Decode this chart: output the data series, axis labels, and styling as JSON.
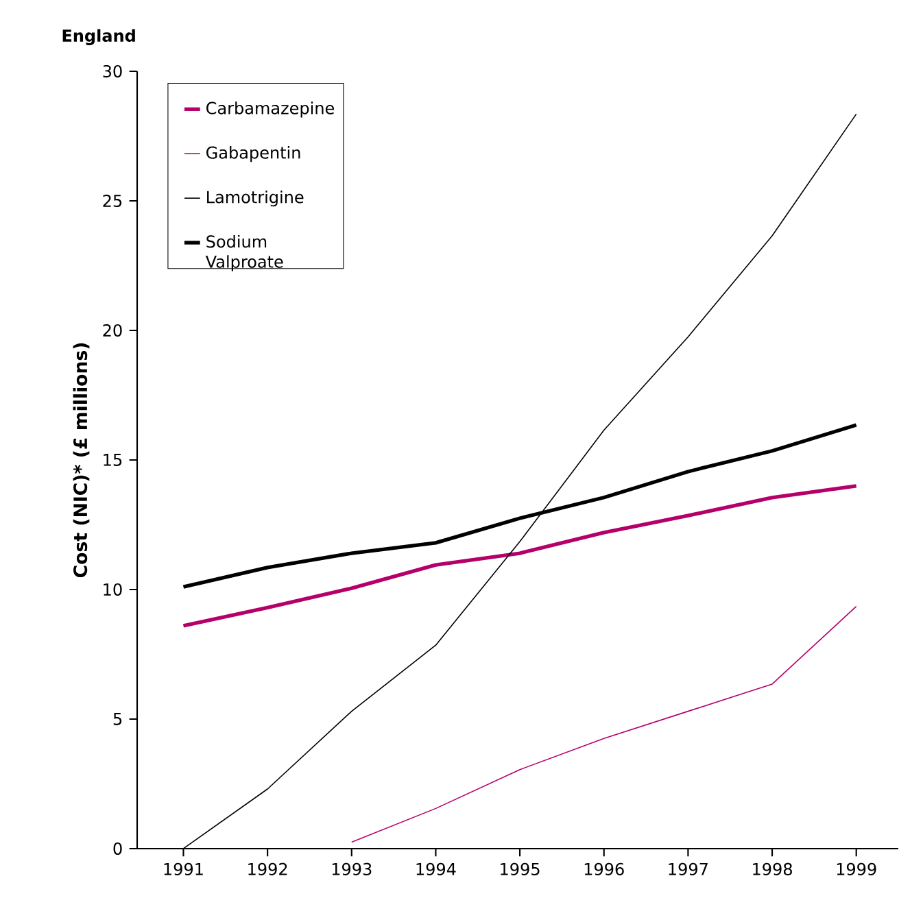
{
  "chart_data": {
    "type": "line",
    "title": "England",
    "ylabel": "Cost (NIC)* (£ millions)",
    "x": [
      1991,
      1992,
      1993,
      1994,
      1995,
      1996,
      1997,
      1998,
      1999
    ],
    "series": [
      {
        "name": "Carbamazepine",
        "color": "#b5006a",
        "values": [
          8.6,
          9.3,
          10.05,
          10.95,
          11.4,
          12.2,
          12.85,
          13.55,
          14.0
        ]
      },
      {
        "name": "Gabapentin",
        "color": "#b5006a",
        "values": [
          null,
          null,
          0.25,
          1.55,
          3.05,
          4.25,
          5.3,
          6.35,
          9.35
        ]
      },
      {
        "name": "Lamotrigine",
        "color": "#000000",
        "values": [
          0,
          2.3,
          5.3,
          7.85,
          11.85,
          16.15,
          19.75,
          23.65,
          28.35
        ]
      },
      {
        "name": "Sodium Valproate",
        "color": "#000000",
        "values": [
          10.1,
          10.85,
          11.4,
          11.8,
          12.75,
          13.55,
          14.55,
          15.35,
          16.35
        ]
      }
    ],
    "xlim": [
      1990.45,
      1999.5
    ],
    "ylim": [
      0,
      30
    ],
    "xticks": [
      1991,
      1992,
      1993,
      1994,
      1995,
      1996,
      1997,
      1998,
      1999
    ],
    "yticks": [
      0,
      5,
      10,
      15,
      20,
      25,
      30
    ],
    "legend": "top left",
    "line_style": "solid"
  }
}
